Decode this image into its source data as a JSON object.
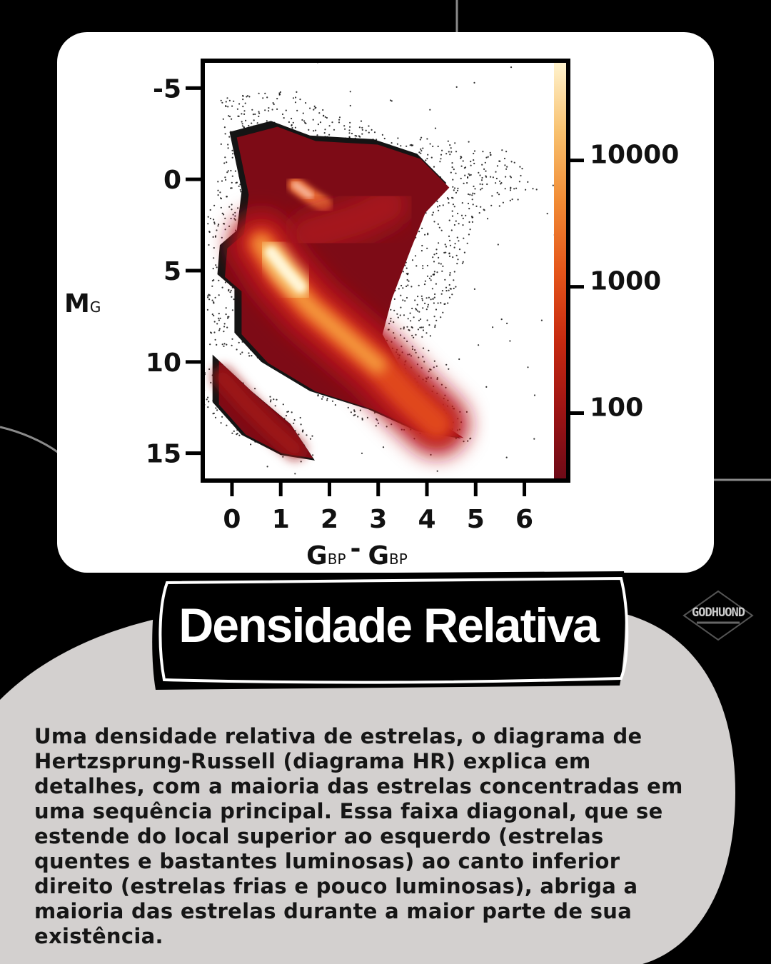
{
  "chart_data": {
    "type": "heatmap",
    "title": "",
    "xlabel": "G",
    "xlabel_sub1": "BP",
    "xlabel_dash": "-",
    "xlabel2": "G",
    "xlabel_sub2": "BP",
    "ylabel": "M",
    "ylabel_sub": "G",
    "xlim": [
      -0.6,
      6.9
    ],
    "ylim": [
      -6.5,
      16.5
    ],
    "y_inverted": true,
    "x_ticks": [
      0,
      1,
      2,
      3,
      4,
      5,
      6
    ],
    "x_tick_labels": [
      "0",
      "1",
      "2",
      "3",
      "4",
      "5",
      "6"
    ],
    "y_ticks": [
      -5,
      0,
      5,
      10,
      15
    ],
    "y_tick_labels": [
      "-5",
      "0",
      "5",
      "10",
      "15"
    ],
    "colorbar": {
      "scale": "log",
      "min": 30,
      "max": 60000,
      "ticks": [
        10000,
        1000,
        100
      ],
      "tick_labels": [
        "10000",
        "1000",
        "100"
      ],
      "colormap": [
        "#6e0a17",
        "#9e1414",
        "#c72a10",
        "#e5561a",
        "#f18b34",
        "#f8c16e",
        "#fff3cf"
      ]
    },
    "density_regions": [
      {
        "name": "main-sequence",
        "points": [
          [
            0.6,
            3.5
          ],
          [
            1.0,
            5.2
          ],
          [
            1.6,
            7.0
          ],
          [
            2.3,
            8.6
          ],
          [
            3.0,
            10.2
          ],
          [
            3.6,
            11.9
          ],
          [
            4.2,
            13.4
          ]
        ]
      },
      {
        "name": "main-sequence-peak",
        "points": [
          [
            0.8,
            4.0
          ],
          [
            1.1,
            5.0
          ],
          [
            1.4,
            5.9
          ]
        ]
      },
      {
        "name": "red-clump",
        "points": [
          [
            1.3,
            0.3
          ],
          [
            1.6,
            0.9
          ],
          [
            1.9,
            1.4
          ]
        ]
      },
      {
        "name": "white-dwarfs",
        "points": [
          [
            -0.2,
            10.8
          ],
          [
            0.3,
            12.3
          ],
          [
            0.8,
            13.6
          ],
          [
            1.3,
            14.8
          ]
        ]
      }
    ]
  },
  "title": "Densidade Relativa",
  "logo_text": "GODHUOND",
  "body_text": "Uma densidade relativa de estrelas, o diagrama de Hertzsprung-Russell (diagrama HR) explica em detalhes, com a maioria das estrelas concentradas em uma sequência principal. Essa faixa diagonal, que se estende do local superior ao esquerdo (estrelas quentes e bastantes luminosas) ao canto inferior direito (estrelas frias e pouco luminosas), abriga a maioria das estrelas durante a maior parte de sua existência.",
  "colors": {
    "background": "#000000",
    "card": "#ffffff",
    "blob": "#d3d0cf",
    "text": "#161616",
    "title_box": "#000000"
  }
}
